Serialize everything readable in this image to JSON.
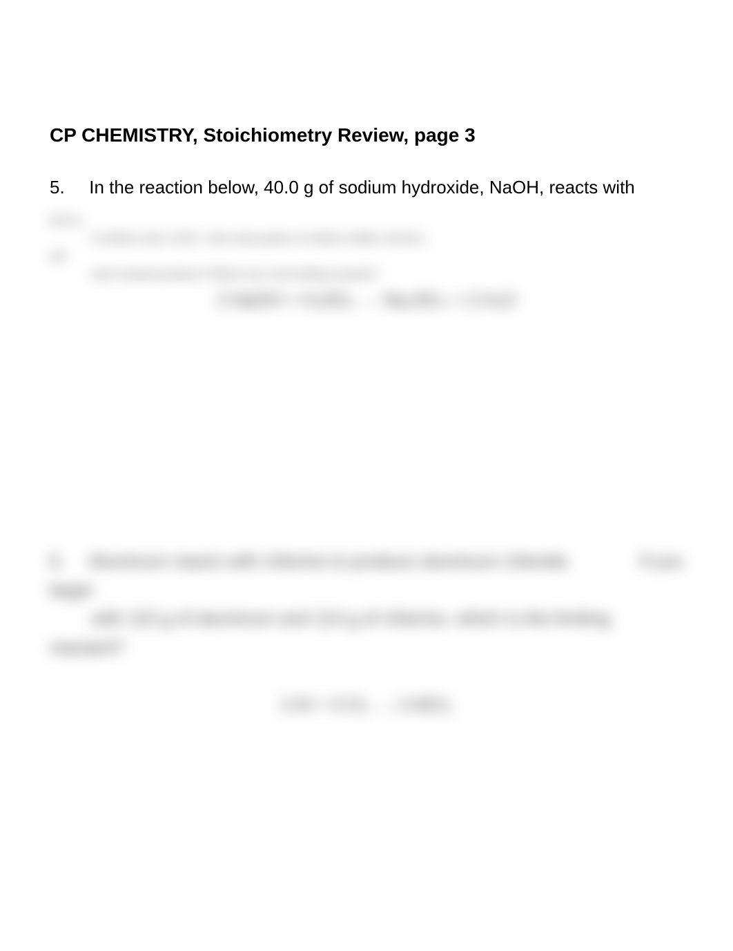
{
  "title": "CP CHEMISTRY, Stoichiometry Review, page 3",
  "problem5": {
    "number": "5.",
    "first_line": "In the reaction below, 40.0 g of sodium hydroxide, NaOH, reacts with",
    "cont1_left": "60.0 g",
    "line2": "of sulfuric acid, H₂SO₄.  How many grams of sodium sulfate, Na₂SO₄,",
    "cont2_left": "will",
    "line3": "each reactant produce?          Which one is the limiting reactant?",
    "equation": "2 NaOH  +  H₂SO₄  →  Na₂SO₄  +  2 H₂O"
  },
  "problem6": {
    "number": "6.",
    "first_line": "Aluminum reacts with chlorine to produce aluminum chloride.",
    "right1": "If you",
    "cont_left": "begin",
    "line2": "with 115 g of aluminum and 114 g of chlorine, which is the limiting",
    "line3_left": "reactant?",
    "equation": "2 Al  +  3 Cl₂  →  2 AlCl₃"
  }
}
